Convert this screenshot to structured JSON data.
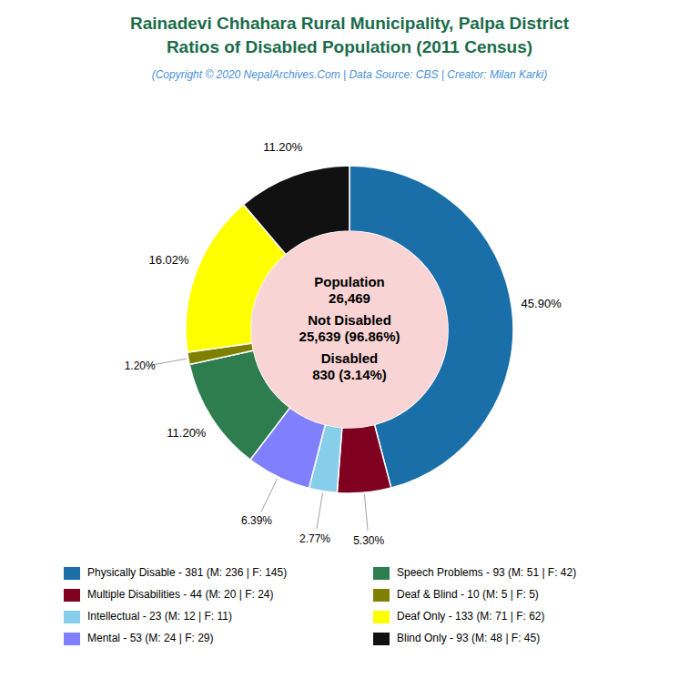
{
  "chart_data": {
    "type": "donut",
    "title": [
      "Rainadevi Chhahara Rural Municipality, Palpa District",
      "Ratios of Disabled Population (2011 Census)"
    ],
    "subtitle": "(Copyright © 2020 NepalArchives.Com | Data Source: CBS | Creator: Milan Karki)",
    "categories": [
      "Physically Disable - 381 (M: 236 | F: 145)",
      "Multiple Disabilities - 44 (M: 20 | F: 24)",
      "Intellectual - 23 (M: 12 | F: 11)",
      "Mental - 53 (M: 24 | F: 29)",
      "Speech Problems - 93 (M: 51 | F: 42)",
      "Deaf & Blind - 10 (M: 5 | F: 5)",
      "Deaf Only - 133 (M: 71 | F: 62)",
      "Blind Only - 93 (M: 48 | F: 45)"
    ],
    "values": [
      45.9,
      5.3,
      2.77,
      6.39,
      11.2,
      1.2,
      16.02,
      11.2
    ],
    "value_labels": [
      "45.90%",
      "5.30%",
      "2.77%",
      "6.39%",
      "11.20%",
      "1.20%",
      "16.02%",
      "11.20%"
    ],
    "colors": [
      "#1a6fa8",
      "#800020",
      "#87ceeb",
      "#8080ff",
      "#2e7d4f",
      "#808000",
      "#ffff00",
      "#111111"
    ],
    "data_labels": true,
    "annotations": [
      "Population",
      "26,469",
      "Not Disabled",
      "25,639 (96.86%)",
      "Disabled",
      "830 (3.14%)"
    ]
  }
}
